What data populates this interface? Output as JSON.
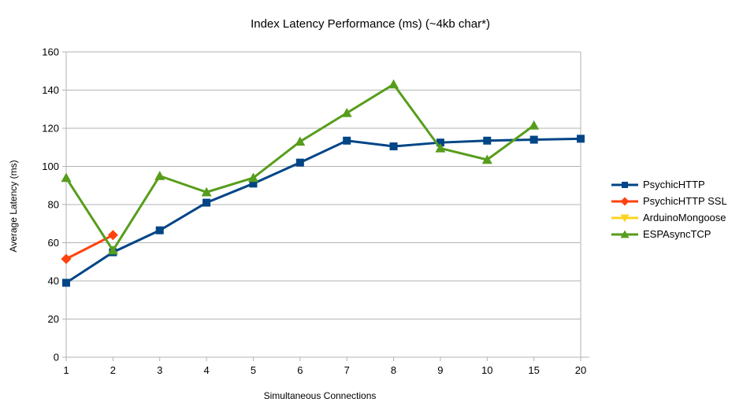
{
  "chart_data": {
    "type": "line",
    "title": "Index Latency Performance (ms) (~4kb char*)",
    "xlabel": "Simultaneous Connections",
    "ylabel": "Average Latency (ms)",
    "categories": [
      "1",
      "2",
      "3",
      "4",
      "5",
      "6",
      "7",
      "8",
      "9",
      "10",
      "15",
      "20"
    ],
    "ylim": [
      0,
      160
    ],
    "ytick_step": 20,
    "y_tick_labels": [
      "0",
      "20",
      "40",
      "60",
      "80",
      "100",
      "120",
      "140",
      "160"
    ],
    "grid": true,
    "legend_position": "right",
    "axis_color": "#b3b3b3",
    "gridline_color": "#b3b3b3",
    "series": [
      {
        "name": "PsychicHTTP",
        "color": "#004586",
        "marker": "square",
        "values": [
          39,
          55,
          66.5,
          81,
          91,
          102,
          113.5,
          110.5,
          112.5,
          113.5,
          114,
          114.5
        ]
      },
      {
        "name": "PsychicHTTP SSL",
        "color": "#ff420e",
        "marker": "diamond",
        "values": [
          51.5,
          64,
          null,
          null,
          null,
          null,
          null,
          null,
          null,
          null,
          null,
          null
        ]
      },
      {
        "name": "ArduinoMongoose",
        "color": "#ffd320",
        "marker": "triangle-down",
        "values": [
          null,
          null,
          null,
          null,
          null,
          null,
          null,
          null,
          null,
          null,
          null,
          null
        ]
      },
      {
        "name": "ESPAsyncTCP",
        "color": "#579d1c",
        "marker": "triangle-up",
        "values": [
          94,
          56,
          95,
          86.5,
          94,
          113,
          128,
          143,
          109.5,
          103.5,
          121.5,
          null
        ]
      }
    ]
  }
}
